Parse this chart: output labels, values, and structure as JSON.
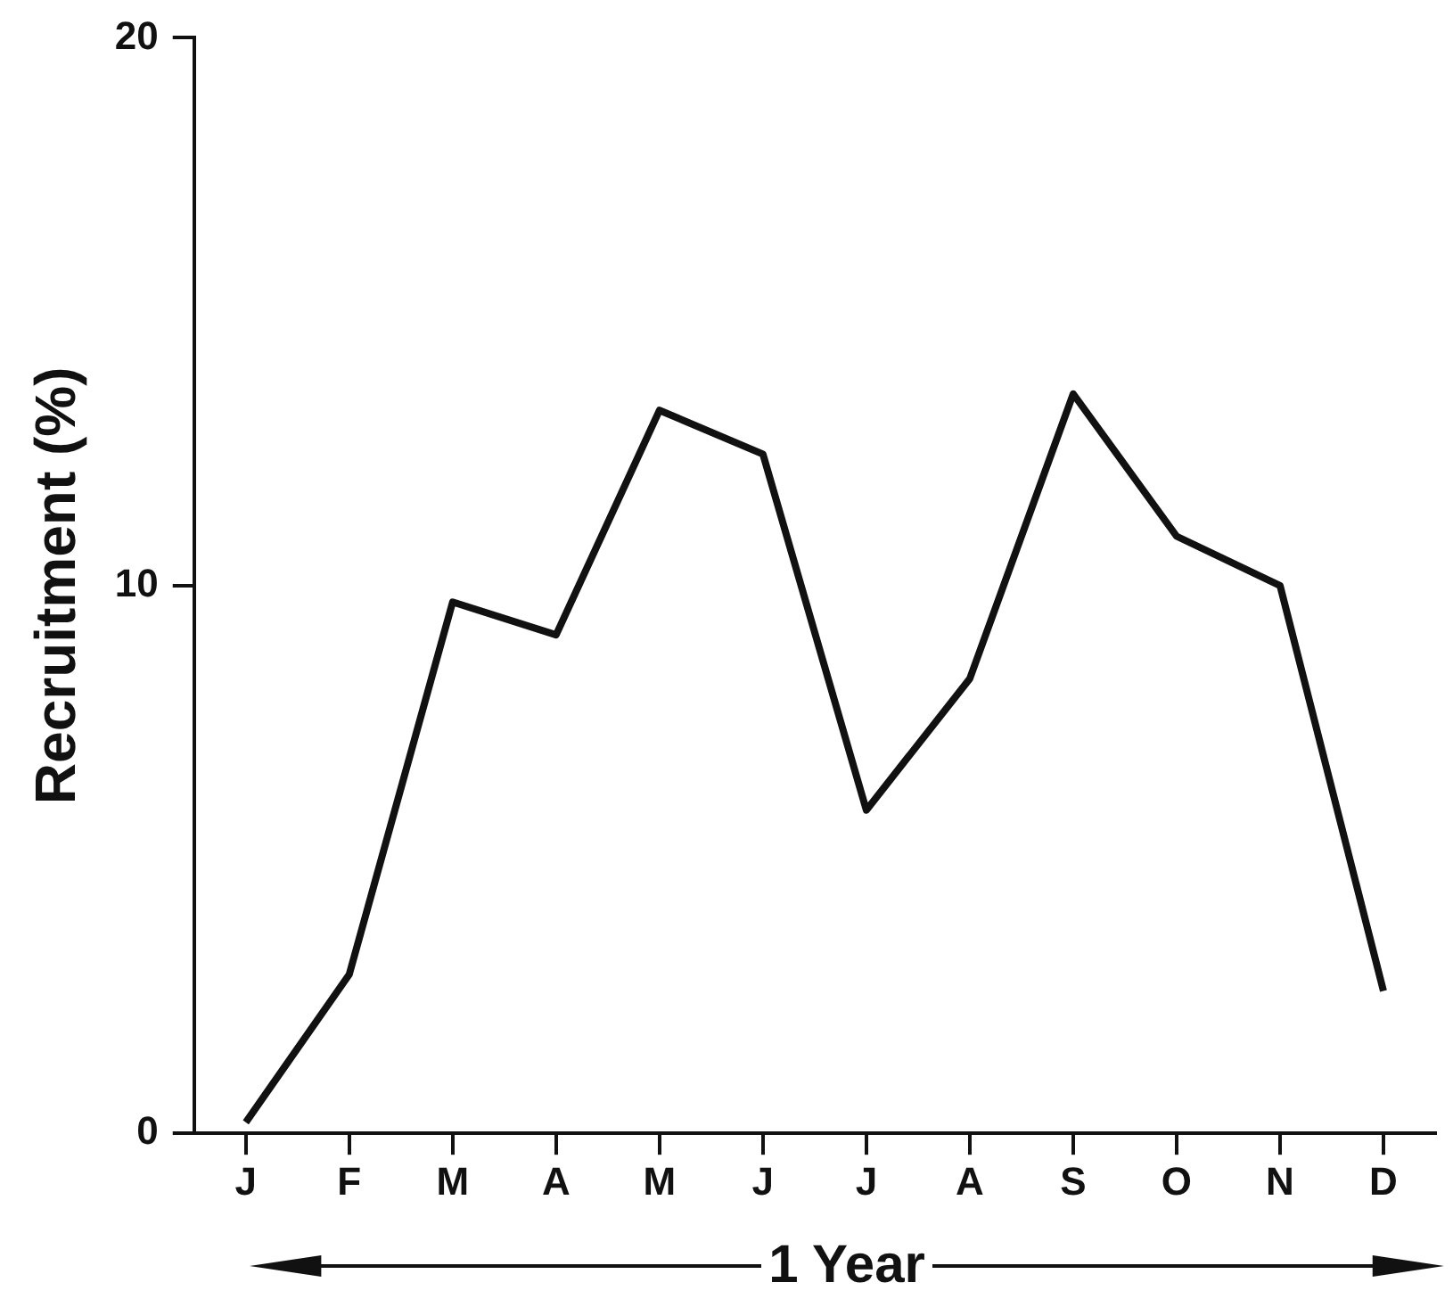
{
  "chart_data": {
    "type": "line",
    "categories": [
      "J",
      "F",
      "M",
      "A",
      "M",
      "J",
      "J",
      "A",
      "S",
      "O",
      "N",
      "D"
    ],
    "values": [
      0.2,
      2.9,
      9.7,
      9.1,
      13.2,
      12.4,
      5.9,
      8.3,
      13.5,
      10.9,
      10.0,
      2.6
    ],
    "color": "#111111",
    "ylabel": "Recruitment (%)",
    "xlabel": "1 Year",
    "ylim": [
      0,
      20
    ],
    "yticks": [
      0,
      10,
      20
    ],
    "grid": false,
    "legend": false,
    "marker": "none",
    "line_style": "solid"
  }
}
